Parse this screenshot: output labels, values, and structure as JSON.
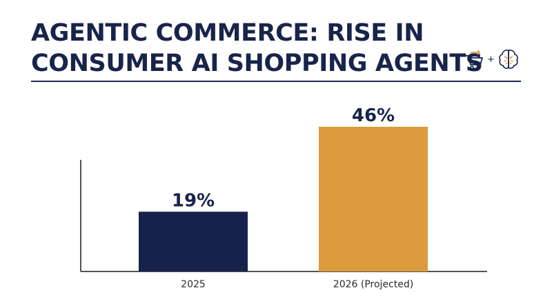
{
  "header": {
    "title_line1": "AGENTIC COMMERCE: RISE IN",
    "title_line2": "CONSUMER AI SHOPPING AGENTS",
    "icons": [
      "shopping-cart-icon",
      "plus-icon",
      "brain-icon"
    ],
    "plus_text": "+"
  },
  "colors": {
    "navy": "#16224a",
    "gold": "#dc9b3c",
    "text": "#18244a"
  },
  "chart_data": {
    "type": "bar",
    "title": "",
    "xlabel": "",
    "ylabel": "",
    "categories": [
      "2025",
      "2026 (Projected)"
    ],
    "values": [
      19,
      46
    ],
    "value_labels": [
      "19%",
      "46%"
    ],
    "bar_colors": [
      "#16224a",
      "#dc9b3c"
    ],
    "ylim": [
      0,
      50
    ],
    "grid": false,
    "legend": "none"
  }
}
